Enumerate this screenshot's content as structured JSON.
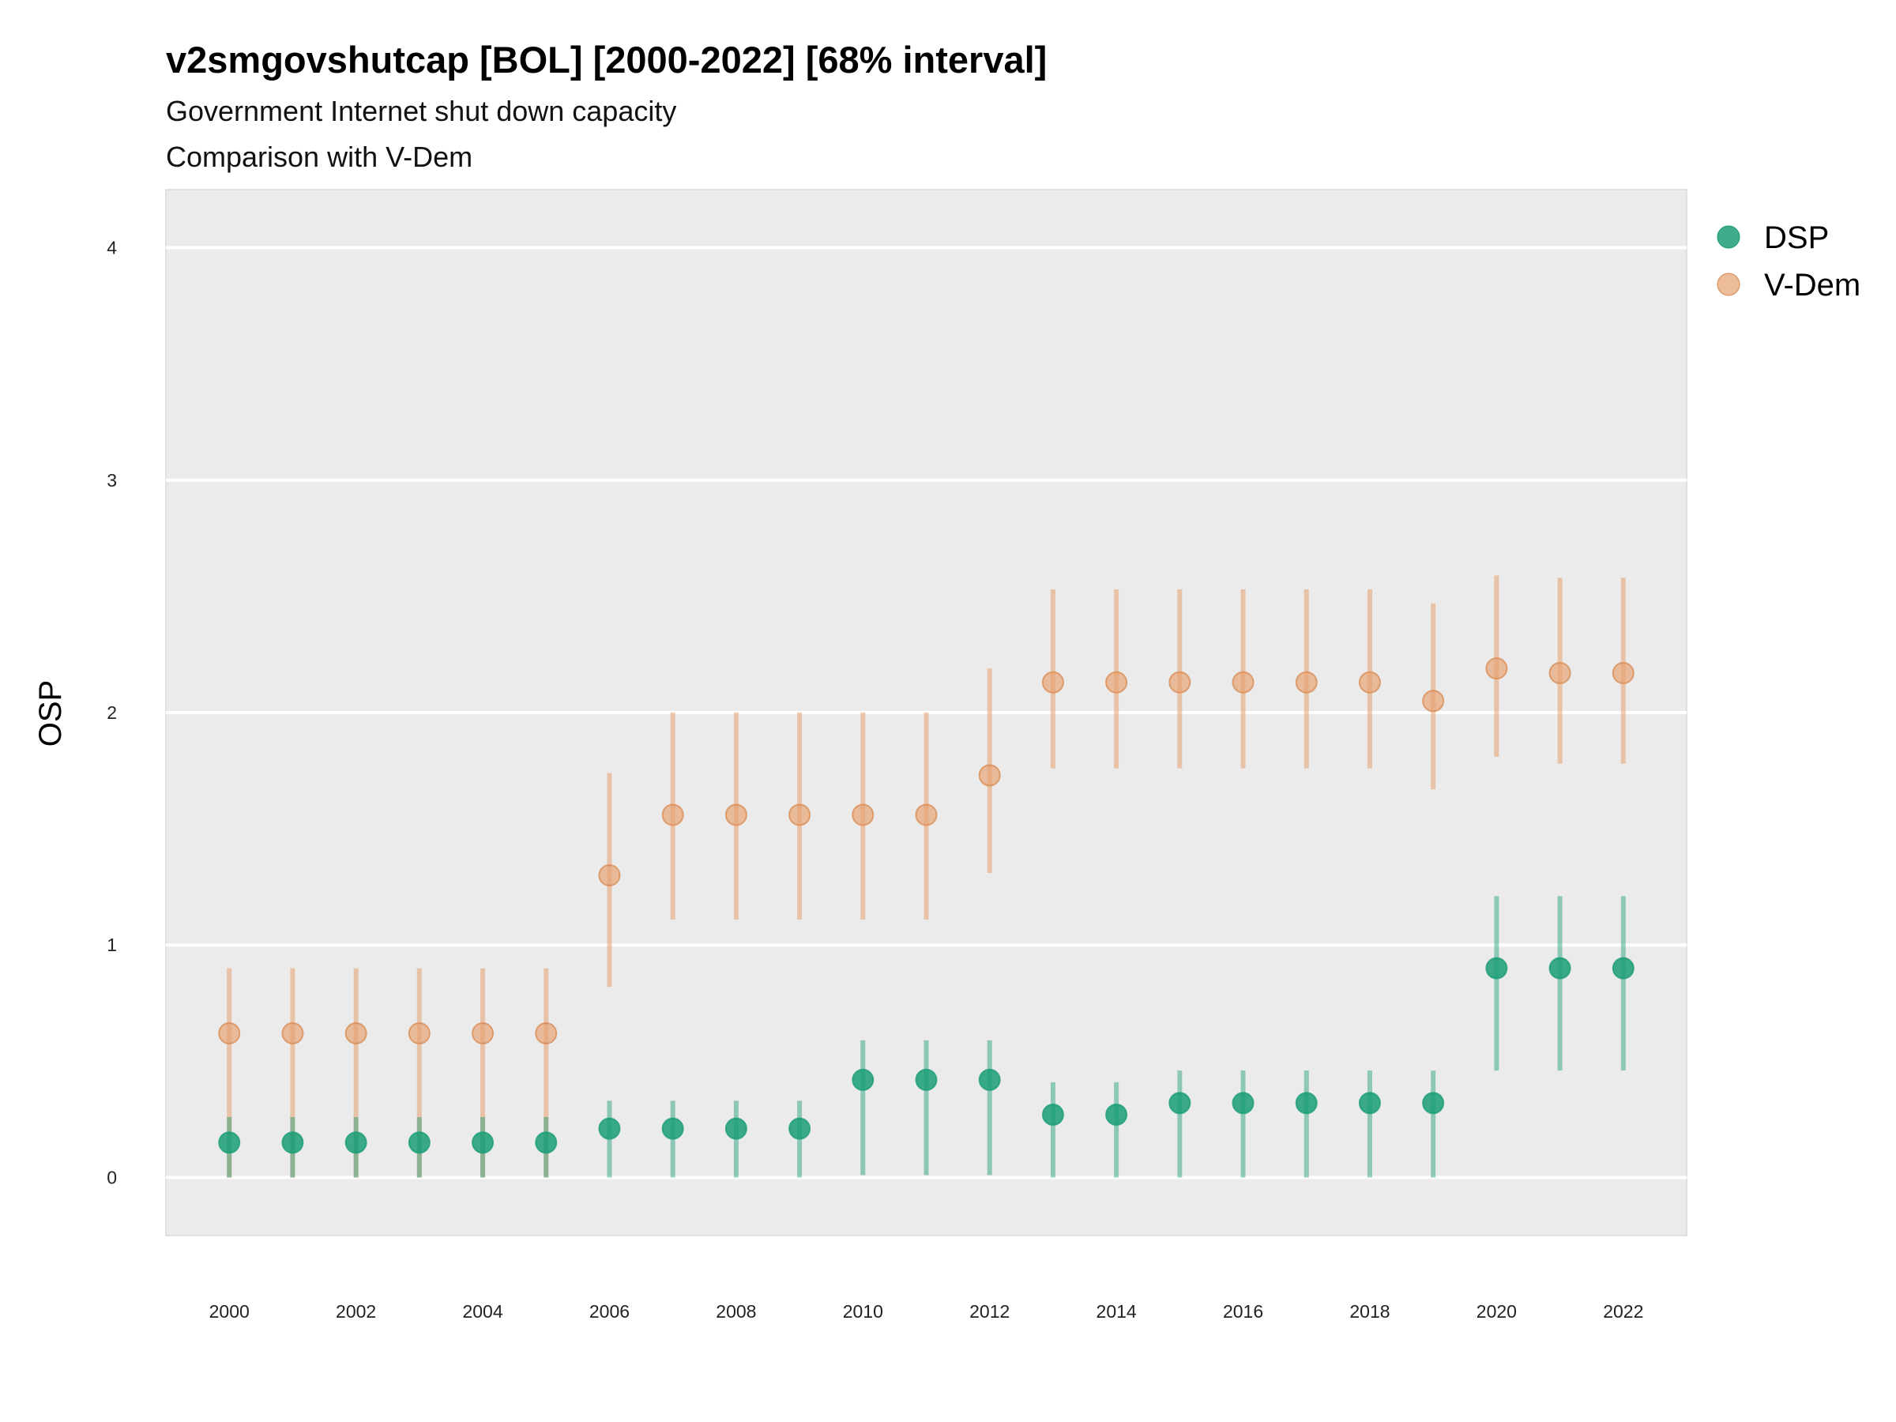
{
  "chart_data": {
    "type": "scatter",
    "title": "v2smgovshutcap [BOL] [2000-2022] [68% interval]",
    "subtitle_lines": [
      "Government Internet shut down capacity",
      "Comparison with V-Dem"
    ],
    "xlabel": "",
    "ylabel": "OSP",
    "x": [
      2000,
      2001,
      2002,
      2003,
      2004,
      2005,
      2006,
      2007,
      2008,
      2009,
      2010,
      2011,
      2012,
      2013,
      2014,
      2015,
      2016,
      2017,
      2018,
      2019,
      2020,
      2021,
      2022
    ],
    "x_tick_labels": [
      "2000",
      "2002",
      "2004",
      "2006",
      "2008",
      "2010",
      "2012",
      "2014",
      "2016",
      "2018",
      "2020",
      "2022"
    ],
    "y_ticks": [
      0,
      1,
      2,
      3,
      4
    ],
    "y_tick_labels": [
      "0",
      "1",
      "2",
      "3",
      "4"
    ],
    "ylim": [
      -0.25,
      4.25
    ],
    "xlim": [
      1999,
      2023
    ],
    "grid": true,
    "legend_position": "right",
    "series": [
      {
        "name": "DSP",
        "color": "#1b9e77",
        "values": [
          0.15,
          0.15,
          0.15,
          0.15,
          0.15,
          0.15,
          0.21,
          0.21,
          0.21,
          0.21,
          0.42,
          0.42,
          0.42,
          0.27,
          0.27,
          0.32,
          0.32,
          0.32,
          0.32,
          0.32,
          0.9,
          0.9,
          0.9
        ],
        "lower": [
          0.0,
          0.0,
          0.0,
          0.0,
          0.0,
          0.0,
          0.0,
          0.0,
          0.0,
          0.0,
          0.01,
          0.01,
          0.01,
          0.0,
          0.0,
          0.0,
          0.0,
          0.0,
          0.0,
          0.0,
          0.46,
          0.46,
          0.46
        ],
        "upper": [
          0.26,
          0.26,
          0.26,
          0.26,
          0.26,
          0.26,
          0.33,
          0.33,
          0.33,
          0.33,
          0.59,
          0.59,
          0.59,
          0.41,
          0.41,
          0.46,
          0.46,
          0.46,
          0.46,
          0.46,
          1.21,
          1.21,
          1.21
        ]
      },
      {
        "name": "V-Dem",
        "color": "#e6a06e",
        "values": [
          0.62,
          0.62,
          0.62,
          0.62,
          0.62,
          0.62,
          1.3,
          1.56,
          1.56,
          1.56,
          1.56,
          1.56,
          1.73,
          2.13,
          2.13,
          2.13,
          2.13,
          2.13,
          2.13,
          2.05,
          2.19,
          2.17,
          2.17
        ],
        "lower": [
          0.0,
          0.0,
          0.0,
          0.0,
          0.0,
          0.0,
          0.82,
          1.11,
          1.11,
          1.11,
          1.11,
          1.11,
          1.31,
          1.76,
          1.76,
          1.76,
          1.76,
          1.76,
          1.76,
          1.67,
          1.81,
          1.78,
          1.78
        ],
        "upper": [
          0.9,
          0.9,
          0.9,
          0.9,
          0.9,
          0.9,
          1.74,
          2.0,
          2.0,
          2.0,
          2.0,
          2.0,
          2.19,
          2.53,
          2.53,
          2.53,
          2.53,
          2.53,
          2.53,
          2.47,
          2.59,
          2.58,
          2.58
        ]
      }
    ]
  }
}
